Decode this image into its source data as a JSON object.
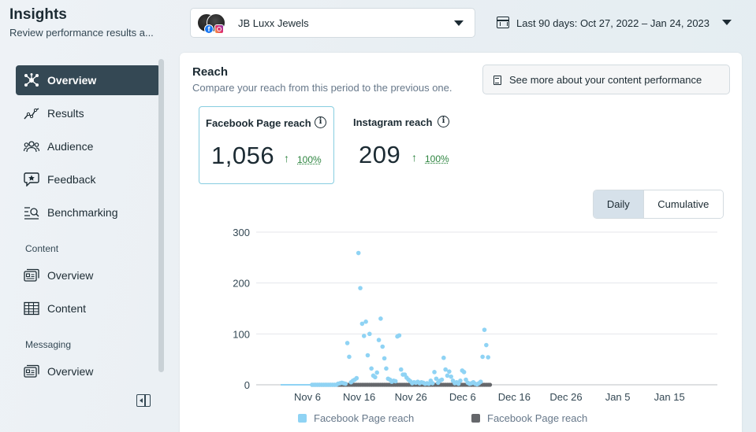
{
  "header": {
    "title": "Insights",
    "subtitle": "Review performance results a...",
    "account": {
      "name": "JB Luxx Jewels",
      "icons": [
        "profile-avatar",
        "facebook-icon",
        "instagram-icon"
      ]
    },
    "date_range": "Last 90 days: Oct 27, 2022 – Jan 24, 2023"
  },
  "sidebar": {
    "items": [
      {
        "label": "Overview",
        "icon": "network-icon",
        "active": true
      },
      {
        "label": "Results",
        "icon": "line-chart-icon"
      },
      {
        "label": "Audience",
        "icon": "people-icon"
      },
      {
        "label": "Feedback",
        "icon": "star-bubble-icon"
      },
      {
        "label": "Benchmarking",
        "icon": "benchmark-icon"
      }
    ],
    "content_section": {
      "label": "Content",
      "items": [
        {
          "label": "Overview",
          "icon": "content-overview-icon"
        },
        {
          "label": "Content",
          "icon": "table-icon"
        }
      ]
    },
    "messaging_section": {
      "label": "Messaging",
      "items": [
        {
          "label": "Overview",
          "icon": "message-overview-icon"
        }
      ]
    }
  },
  "card": {
    "title": "Reach",
    "subtitle": "Compare your reach from this period to the previous one.",
    "see_more_label": "See more about your content performance",
    "metrics": [
      {
        "title": "Facebook Page reach",
        "value": "1,056",
        "change": "100%",
        "selected": true
      },
      {
        "title": "Instagram reach",
        "value": "209",
        "change": "100%",
        "selected": false
      }
    ],
    "toggle": {
      "daily": "Daily",
      "cumulative": "Cumulative",
      "selected": "Daily"
    }
  },
  "colors": {
    "series_current": "#8fd3f4",
    "series_previous": "#65676b",
    "active_nav": "#344854",
    "positive": "#2e8540"
  },
  "chart_data": {
    "type": "scatter",
    "x_labels": [
      "Nov 6",
      "Nov 16",
      "Nov 26",
      "Dec 6",
      "Dec 16",
      "Dec 26",
      "Jan 5",
      "Jan 15"
    ],
    "y_ticks": [
      0,
      100,
      200,
      300
    ],
    "ylim": [
      0,
      300
    ],
    "legend": [
      "Facebook Page reach",
      "Facebook Page reach"
    ],
    "legend_position": "bottom",
    "grid": true,
    "series": [
      {
        "name": "Facebook Page reach",
        "color": "#8fd3f4",
        "values": [
          0,
          0,
          0,
          0,
          0,
          0,
          0,
          0,
          0,
          0,
          0,
          0,
          0,
          0,
          0,
          0,
          0,
          0,
          0,
          0,
          0,
          0,
          0,
          0,
          0,
          0,
          0,
          0,
          0,
          0,
          0,
          2,
          3,
          4,
          3,
          2,
          82,
          55,
          5,
          8,
          10,
          13,
          259,
          190,
          120,
          96,
          124,
          58,
          100,
          32,
          18,
          15,
          24,
          88,
          130,
          75,
          52,
          32,
          12,
          10,
          6,
          8,
          7,
          95,
          97,
          30,
          20,
          20,
          14,
          10,
          7,
          3,
          5,
          4,
          6,
          3,
          5,
          4,
          2,
          3,
          2,
          8,
          3,
          25,
          12,
          4,
          8,
          10,
          53,
          30,
          18,
          26,
          16,
          8,
          3,
          5,
          2,
          8,
          28,
          25,
          10,
          4,
          2,
          3,
          5,
          2,
          1,
          3,
          6,
          55,
          108,
          78,
          54
        ],
        "line_until_index": 17
      },
      {
        "name": "Facebook Page reach",
        "color": "#65676b",
        "values_constant": 0,
        "start_index": 17,
        "end_index": 113
      }
    ]
  }
}
